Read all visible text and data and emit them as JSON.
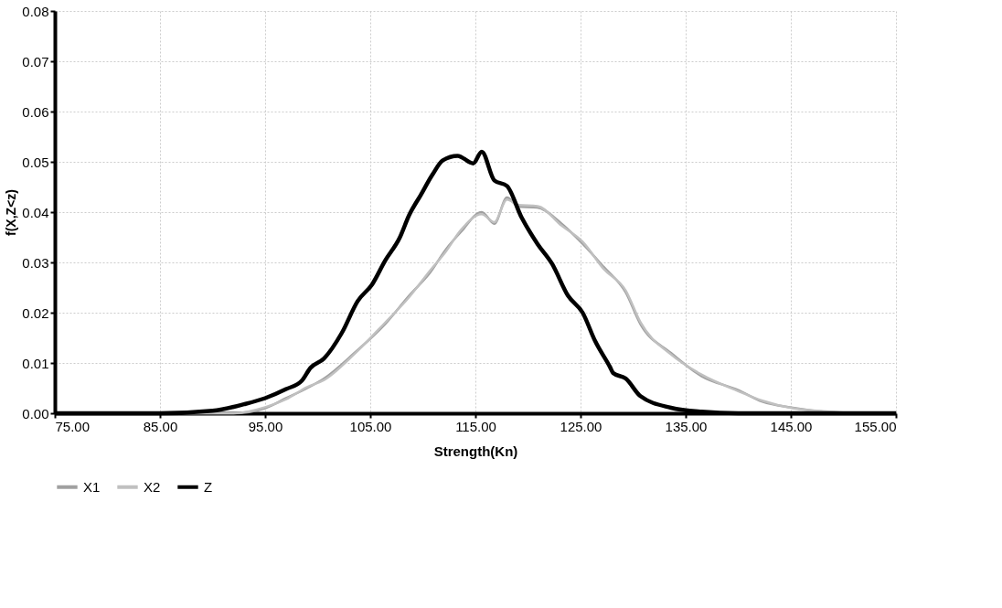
{
  "chart_data": {
    "type": "line",
    "xlabel": "Strength(Kn)",
    "ylabel": "f(X,Z<z)",
    "xlim": [
      75,
      155
    ],
    "ylim": [
      0,
      0.08
    ],
    "xticks": [
      {
        "value": 75,
        "label": "75.00"
      },
      {
        "value": 85,
        "label": "85.00"
      },
      {
        "value": 95,
        "label": "95.00"
      },
      {
        "value": 105,
        "label": "105.00"
      },
      {
        "value": 115,
        "label": "115.00"
      },
      {
        "value": 125,
        "label": "125.00"
      },
      {
        "value": 135,
        "label": "135.00"
      },
      {
        "value": 145,
        "label": "145.00"
      },
      {
        "value": 155,
        "label": "155.00"
      }
    ],
    "yticks": [
      {
        "value": 0,
        "label": "0.00"
      },
      {
        "value": 0.01,
        "label": "0.01"
      },
      {
        "value": 0.02,
        "label": "0.02"
      },
      {
        "value": 0.03,
        "label": "0.03"
      },
      {
        "value": 0.04,
        "label": "0.04"
      },
      {
        "value": 0.05,
        "label": "0.05"
      },
      {
        "value": 0.06,
        "label": "0.06"
      },
      {
        "value": 0.07,
        "label": "0.07"
      },
      {
        "value": 0.08,
        "label": "0.08"
      }
    ],
    "grid": true,
    "legend": "bottom",
    "marker": "none",
    "line_style": "solid",
    "series": [
      {
        "name": "X1",
        "color": "#a0a0a0",
        "x": [
          75,
          92,
          95,
          97,
          99,
          100.6,
          103.5,
          106.4,
          108.7,
          110.7,
          112.2,
          113.6,
          115.6,
          116.8,
          118.0,
          119.1,
          120.9,
          123.2,
          125.2,
          127.2,
          129.3,
          130.7,
          133.6,
          136.5,
          140.0,
          142.3,
          145.2,
          148.1,
          152,
          155
        ],
        "values": [
          0,
          0,
          0.001,
          0.003,
          0.005,
          0.0069,
          0.012,
          0.0177,
          0.0234,
          0.028,
          0.0326,
          0.036,
          0.04,
          0.0377,
          0.0429,
          0.0411,
          0.0409,
          0.0377,
          0.0337,
          0.0291,
          0.024,
          0.0177,
          0.012,
          0.0074,
          0.0046,
          0.0023,
          0.0011,
          0.0003,
          0,
          0
        ]
      },
      {
        "name": "X2",
        "color": "#c0c0c0",
        "x": [
          75,
          92,
          95,
          97,
          99,
          100.6,
          103.5,
          106.4,
          108.7,
          110.7,
          112.2,
          113.6,
          115.6,
          116.8,
          118.0,
          119.1,
          120.9,
          123.2,
          125.2,
          127.2,
          129.3,
          130.7,
          133.6,
          136.5,
          140.0,
          142.3,
          145.2,
          148.1,
          152,
          155
        ],
        "values": [
          0,
          0,
          0.0012,
          0.0028,
          0.0052,
          0.0066,
          0.0118,
          0.018,
          0.0231,
          0.0284,
          0.0322,
          0.0364,
          0.0396,
          0.038,
          0.0425,
          0.0414,
          0.0412,
          0.0373,
          0.0341,
          0.0287,
          0.0244,
          0.0181,
          0.0117,
          0.0077,
          0.0044,
          0.0025,
          0.001,
          0.0004,
          0,
          0
        ]
      },
      {
        "name": "Z",
        "color": "#000000",
        "x": [
          75,
          85,
          90,
          93,
          95,
          97,
          98.5,
          99.3,
          100.6,
          102.3,
          103.8,
          105.2,
          106.4,
          107.8,
          108.7,
          109.8,
          110.9,
          111.9,
          113.3,
          114.8,
          115.6,
          116.8,
          118.0,
          119.4,
          120.9,
          122.3,
          123.8,
          125.2,
          126.4,
          127.8,
          128.1,
          129.3,
          130.7,
          133.6,
          136.5,
          140,
          155
        ],
        "values": [
          0,
          0,
          0.0005,
          0.0018,
          0.003,
          0.0048,
          0.0065,
          0.009,
          0.0109,
          0.016,
          0.0223,
          0.0257,
          0.0303,
          0.0349,
          0.0394,
          0.0434,
          0.0474,
          0.0503,
          0.0512,
          0.0497,
          0.052,
          0.0463,
          0.0452,
          0.0389,
          0.0337,
          0.0297,
          0.0234,
          0.02,
          0.0143,
          0.0092,
          0.008,
          0.0069,
          0.0034,
          0.0011,
          0.0003,
          0,
          0
        ]
      }
    ]
  }
}
